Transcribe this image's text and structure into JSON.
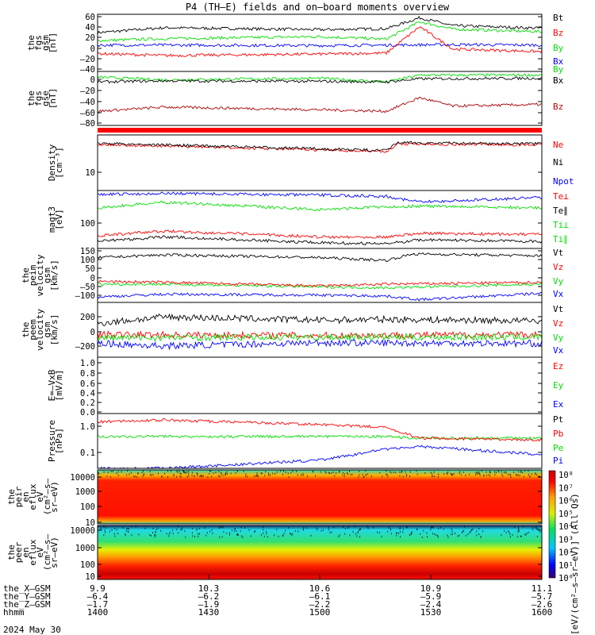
{
  "chart_data": {
    "type": "line",
    "title": "P4 (TH–E) fields and on–board moments overview",
    "date": "2024 May 30",
    "time_axis": {
      "range": [
        1400,
        1600
      ],
      "rows": [
        {
          "label": "the_X–GSM",
          "values": [
            "9.9",
            "10.3",
            "10.6",
            "10.9",
            "11.1"
          ]
        },
        {
          "label": "the_Y–GSM",
          "values": [
            "–6.4",
            "–6.2",
            "–6.1",
            "–5.9",
            "–5.7"
          ]
        },
        {
          "label": "the_Z–GSM",
          "values": [
            "–1.7",
            "–1.9",
            "–2.2",
            "–2.4",
            "–2.6"
          ]
        },
        {
          "label": "hhmm",
          "values": [
            "1400",
            "1430",
            "1500",
            "1530",
            "1600"
          ]
        }
      ]
    },
    "colorbar": {
      "labels": [
        "10⁸",
        "10⁷",
        "10⁶",
        "10⁵",
        "10⁴",
        "10³",
        "10²",
        "10¹",
        "10⁰"
      ],
      "title": "[eV/(cm²–s–sr–eV)] (All Qs)"
    },
    "panels": [
      {
        "id": "fgs_gsm",
        "ylabel": [
          "the",
          "fgs",
          "gsm",
          "[nT]"
        ],
        "yticks": [
          "60",
          "40",
          "20",
          "0",
          "–20",
          "–40"
        ],
        "ylim": [
          -50,
          65
        ],
        "legend": [
          {
            "label": "Bt",
            "color": "#000000"
          },
          {
            "label": "Bz",
            "color": "#ff0000"
          },
          {
            "label": "By",
            "color": "#00dd00"
          },
          {
            "label": "Bx",
            "color": "#0000ff"
          }
        ],
        "series": [
          {
            "color": "#000000",
            "points": [
              [
                1400,
                28
              ],
              [
                1430,
                38
              ],
              [
                1500,
                34
              ],
              [
                1530,
                36
              ],
              [
                1545,
                58
              ],
              [
                1560,
                42
              ],
              [
                1600,
                37
              ]
            ]
          },
          {
            "color": "#00dd00",
            "points": [
              [
                1400,
                12
              ],
              [
                1430,
                16
              ],
              [
                1500,
                20
              ],
              [
                1530,
                15
              ],
              [
                1545,
                50
              ],
              [
                1560,
                35
              ],
              [
                1600,
                30
              ]
            ]
          },
          {
            "color": "#0000ff",
            "points": [
              [
                1400,
                3
              ],
              [
                1430,
                3
              ],
              [
                1500,
                2
              ],
              [
                1530,
                3
              ],
              [
                1560,
                4
              ],
              [
                1600,
                3
              ]
            ]
          },
          {
            "color": "#ff0000",
            "points": [
              [
                1400,
                -14
              ],
              [
                1430,
                -18
              ],
              [
                1500,
                -15
              ],
              [
                1530,
                -13
              ],
              [
                1545,
                40
              ],
              [
                1560,
                -5
              ],
              [
                1600,
                -10
              ]
            ]
          }
        ]
      },
      {
        "id": "fgs_gse",
        "ylabel": [
          "the",
          "fgs",
          "gse",
          "[nT]"
        ],
        "yticks": [
          "0",
          "–20",
          "–40",
          "–60",
          "–80"
        ],
        "ylim": [
          -95,
          8
        ],
        "legend": [
          {
            "label": "By",
            "color": "#00dd00"
          },
          {
            "label": "Bx",
            "color": "#000000"
          },
          {
            "label": "Bz",
            "color": "#bb0000"
          }
        ],
        "series": [
          {
            "color": "#00dd00",
            "points": [
              [
                1400,
                -3
              ],
              [
                1430,
                -8
              ],
              [
                1500,
                -5
              ],
              [
                1530,
                -12
              ],
              [
                1545,
                1
              ],
              [
                1600,
                1
              ]
            ]
          },
          {
            "color": "#000000",
            "points": [
              [
                1400,
                -12
              ],
              [
                1430,
                -10
              ],
              [
                1500,
                -11
              ],
              [
                1530,
                -12
              ],
              [
                1545,
                -6
              ],
              [
                1600,
                -5
              ]
            ]
          },
          {
            "color": "#aa0000",
            "points": [
              [
                1400,
                -68
              ],
              [
                1430,
                -60
              ],
              [
                1500,
                -65
              ],
              [
                1530,
                -68
              ],
              [
                1545,
                -42
              ],
              [
                1560,
                -58
              ],
              [
                1600,
                -55
              ]
            ]
          }
        ]
      },
      {
        "id": "density",
        "ylabel": [
          "Density",
          "[cm⁻³]"
        ],
        "yticks": [
          "10"
        ],
        "legend": [
          {
            "label": "Ne",
            "color": "#ff0000"
          },
          {
            "label": "Ni",
            "color": "#000000"
          },
          {
            "label": "Npot",
            "color": "#0000ff"
          }
        ],
        "series": [
          {
            "color": "#ff0000",
            "points": [
              [
                1400,
                0.17
              ],
              [
                1430,
                0.2
              ],
              [
                1500,
                0.27
              ],
              [
                1530,
                0.3
              ],
              [
                1535,
                0.16
              ],
              [
                1600,
                0.18
              ]
            ]
          },
          {
            "color": "#000000",
            "points": [
              [
                1400,
                0.15
              ],
              [
                1430,
                0.18
              ],
              [
                1500,
                0.25
              ],
              [
                1530,
                0.28
              ],
              [
                1535,
                0.14
              ],
              [
                1600,
                0.16
              ]
            ]
          }
        ]
      },
      {
        "id": "temperature",
        "ylabel": [
          "magt3",
          "[eV]"
        ],
        "yticks": [
          "100"
        ],
        "legend": [
          {
            "label": "Te⊥",
            "color": "#ff0000"
          },
          {
            "label": "Te∥",
            "color": "#000000"
          },
          {
            "label": "Ti⊥",
            "color": "#00dd00"
          },
          {
            "label": "Ti∥",
            "color": "#00dd00"
          }
        ],
        "series": [
          {
            "color": "#0000ff",
            "points": [
              [
                1400,
                0.07
              ],
              [
                1430,
                0.05
              ],
              [
                1500,
                0.08
              ],
              [
                1530,
                0.1
              ],
              [
                1545,
                0.2
              ],
              [
                1600,
                0.12
              ]
            ]
          },
          {
            "color": "#00dd00",
            "points": [
              [
                1400,
                0.3
              ],
              [
                1430,
                0.2
              ],
              [
                1500,
                0.33
              ],
              [
                1530,
                0.28
              ],
              [
                1545,
                0.27
              ],
              [
                1600,
                0.3
              ]
            ]
          },
          {
            "color": "#ff0000",
            "points": [
              [
                1400,
                0.78
              ],
              [
                1430,
                0.7
              ],
              [
                1500,
                0.8
              ],
              [
                1530,
                0.8
              ],
              [
                1545,
                0.74
              ],
              [
                1600,
                0.76
              ]
            ]
          },
          {
            "color": "#000000",
            "points": [
              [
                1400,
                0.88
              ],
              [
                1430,
                0.8
              ],
              [
                1500,
                0.9
              ],
              [
                1530,
                0.92
              ],
              [
                1545,
                0.85
              ],
              [
                1600,
                0.88
              ]
            ]
          }
        ]
      },
      {
        "id": "ion_velocity",
        "ylabel": [
          "the",
          "peim",
          "velocity",
          "gsm",
          "[km/s]"
        ],
        "yticks": [
          "150",
          "100",
          "50",
          "0",
          "–50",
          "–100"
        ],
        "ylim": [
          -130,
          165
        ],
        "legend": [
          {
            "label": "Vt",
            "color": "#000000"
          },
          {
            "label": "Vz",
            "color": "#ff0000"
          },
          {
            "label": "Vy",
            "color": "#00dd00"
          },
          {
            "label": "Vx",
            "color": "#0000ff"
          }
        ],
        "series": [
          {
            "color": "#000000",
            "points": [
              [
                1400,
                115
              ],
              [
                1430,
                130
              ],
              [
                1500,
                115
              ],
              [
                1530,
                100
              ],
              [
                1542,
                135
              ],
              [
                1600,
                125
              ]
            ]
          },
          {
            "color": "#00dd00",
            "points": [
              [
                1400,
                -30
              ],
              [
                1430,
                -30
              ],
              [
                1500,
                -45
              ],
              [
                1530,
                -50
              ],
              [
                1600,
                -30
              ]
            ]
          },
          {
            "color": "#ff0000",
            "points": [
              [
                1400,
                -15
              ],
              [
                1430,
                -20
              ],
              [
                1500,
                -40
              ],
              [
                1530,
                -30
              ],
              [
                1600,
                -20
              ]
            ]
          },
          {
            "color": "#0000ff",
            "points": [
              [
                1400,
                -100
              ],
              [
                1430,
                -85
              ],
              [
                1500,
                -90
              ],
              [
                1530,
                -95
              ],
              [
                1545,
                -115
              ],
              [
                1600,
                -80
              ]
            ]
          }
        ]
      },
      {
        "id": "electron_velocity",
        "ylabel": [
          "the",
          "peem",
          "velocity",
          "gsm",
          "[km/s]"
        ],
        "yticks": [
          "200",
          "0",
          "–200"
        ],
        "ylim": [
          -300,
          380
        ],
        "legend": [
          {
            "label": "Vt",
            "color": "#000000"
          },
          {
            "label": "Vz",
            "color": "#ff0000"
          },
          {
            "label": "Vy",
            "color": "#00dd00"
          },
          {
            "label": "Vx",
            "color": "#0000ff"
          }
        ],
        "series": [
          {
            "color": "#000000",
            "points": [
              [
                1400,
                120
              ],
              [
                1430,
                200
              ],
              [
                1500,
                160
              ],
              [
                1530,
                170
              ],
              [
                1600,
                150
              ]
            ]
          },
          {
            "color": "#ff0000",
            "points": [
              [
                1400,
                -20
              ],
              [
                1500,
                -30
              ],
              [
                1600,
                -20
              ]
            ]
          },
          {
            "color": "#00dd00",
            "points": [
              [
                1400,
                -60
              ],
              [
                1500,
                -50
              ],
              [
                1600,
                -50
              ]
            ]
          },
          {
            "color": "#0000ff",
            "points": [
              [
                1400,
                -130
              ],
              [
                1430,
                -160
              ],
              [
                1500,
                -120
              ],
              [
                1600,
                -130
              ]
            ]
          }
        ]
      },
      {
        "id": "efield",
        "ylabel": [
          "E=–VxB",
          "[mV/m]"
        ],
        "yticks": [
          "1.0",
          "0.8",
          "0.6",
          "0.4",
          "0.2",
          "0.0"
        ],
        "ylim": [
          -0.05,
          1.05
        ],
        "legend": [
          {
            "label": "Ez",
            "color": "#ff0000"
          },
          {
            "label": "Ey",
            "color": "#00dd00"
          },
          {
            "label": "Ex",
            "color": "#0000ff"
          }
        ]
      },
      {
        "id": "pressure",
        "ylabel": [
          "Pressure",
          "[nPa]"
        ],
        "yticks": [
          "1.0",
          "0.1"
        ],
        "legend": [
          {
            "label": "Pt",
            "color": "#000000"
          },
          {
            "label": "Pb",
            "color": "#ff0000"
          },
          {
            "label": "Pe",
            "color": "#00dd00"
          },
          {
            "label": "Pi",
            "color": "#0000ff"
          }
        ],
        "series": [
          {
            "color": "#000000",
            "points": [
              [
                1400,
                1.3
              ],
              [
                1430,
                1.4
              ],
              [
                1500,
                1.25
              ],
              [
                1530,
                1.15
              ],
              [
                1545,
                1.5
              ],
              [
                1600,
                1.3
              ]
            ]
          },
          {
            "color": "#0000ff",
            "points": [
              [
                1400,
                1.0
              ],
              [
                1430,
                1.0
              ],
              [
                1500,
                0.85
              ],
              [
                1530,
                0.65
              ],
              [
                1545,
                0.6
              ],
              [
                1600,
                0.75
              ]
            ]
          },
          {
            "color": "#00dd00",
            "points": [
              [
                1400,
                0.42
              ],
              [
                1430,
                0.42
              ],
              [
                1500,
                0.42
              ],
              [
                1530,
                0.42
              ],
              [
                1545,
                0.45
              ],
              [
                1600,
                0.45
              ]
            ]
          },
          {
            "color": "#ff0000",
            "points": [
              [
                1400,
                0.15
              ],
              [
                1430,
                0.12
              ],
              [
                1500,
                0.2
              ],
              [
                1530,
                0.25
              ],
              [
                1545,
                0.45
              ],
              [
                1600,
                0.48
              ]
            ]
          }
        ]
      },
      {
        "id": "ion_spectrogram",
        "type": "heatmap",
        "ylabel": [
          "the",
          "peir",
          "en",
          "eflux",
          "eV",
          "(cm²–s–",
          "sr–eV)"
        ],
        "yticks": [
          "10000",
          "1000",
          "100",
          "10"
        ]
      },
      {
        "id": "electron_spectrogram",
        "type": "heatmap",
        "ylabel": [
          "the",
          "peer",
          "en",
          "eflux",
          "eV",
          "(cm²–s–",
          "sr–eV)"
        ],
        "yticks": [
          "10000",
          "1000",
          "100",
          "10"
        ]
      }
    ]
  }
}
